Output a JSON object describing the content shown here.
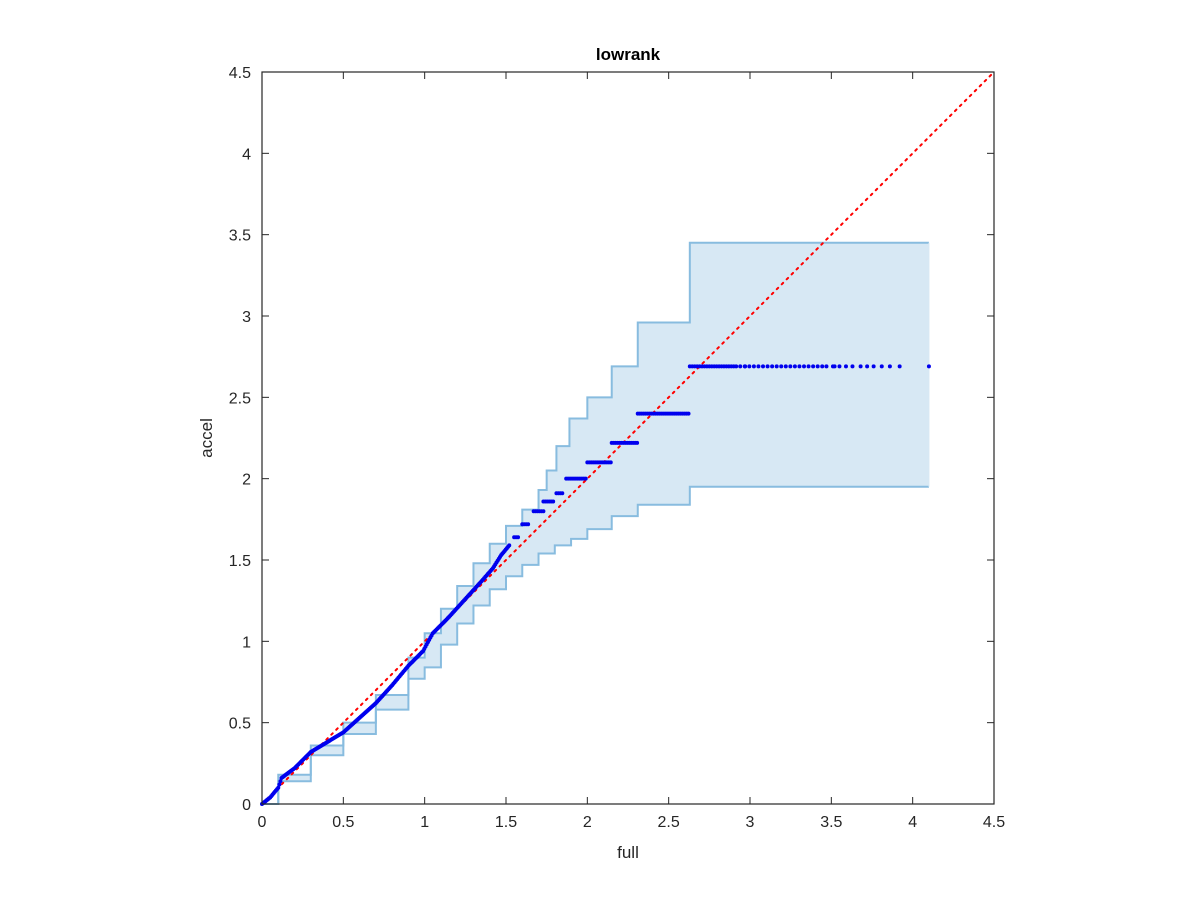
{
  "chart_data": {
    "type": "scatter",
    "title": "lowrank",
    "xlabel": "full",
    "ylabel": "accel",
    "xlim": [
      0,
      4.5
    ],
    "ylim": [
      0,
      4.5
    ],
    "xticks": [
      "0",
      "0.5",
      "1",
      "1.5",
      "2",
      "2.5",
      "3",
      "3.5",
      "4",
      "4.5"
    ],
    "yticks": [
      "0",
      "0.5",
      "1",
      "1.5",
      "2",
      "2.5",
      "3",
      "3.5",
      "4",
      "4.5"
    ],
    "grid": false,
    "colors": {
      "points": "#0000ee",
      "band_fill": "#d7e8f4",
      "band_edge": "#88bcdf",
      "reference": "#ff0000",
      "axes": "#262626"
    },
    "reference_line": {
      "style": "dotted",
      "x": [
        0,
        4.5
      ],
      "y": [
        0,
        4.5
      ]
    },
    "band_upper": [
      [
        0,
        0
      ],
      [
        0.1,
        0.18
      ],
      [
        0.3,
        0.36
      ],
      [
        0.5,
        0.5
      ],
      [
        0.7,
        0.67
      ],
      [
        0.9,
        0.9
      ],
      [
        1.0,
        1.05
      ],
      [
        1.1,
        1.2
      ],
      [
        1.2,
        1.34
      ],
      [
        1.3,
        1.48
      ],
      [
        1.4,
        1.6
      ],
      [
        1.5,
        1.71
      ],
      [
        1.6,
        1.81
      ],
      [
        1.7,
        1.93
      ],
      [
        1.75,
        2.05
      ],
      [
        1.81,
        2.2
      ],
      [
        1.89,
        2.37
      ],
      [
        2.0,
        2.5
      ],
      [
        2.15,
        2.69
      ],
      [
        2.31,
        2.96
      ],
      [
        2.63,
        3.45
      ],
      [
        4.1,
        3.45
      ]
    ],
    "band_lower": [
      [
        0,
        0
      ],
      [
        0.1,
        0.14
      ],
      [
        0.3,
        0.3
      ],
      [
        0.5,
        0.43
      ],
      [
        0.7,
        0.58
      ],
      [
        0.9,
        0.77
      ],
      [
        1.0,
        0.84
      ],
      [
        1.1,
        0.98
      ],
      [
        1.2,
        1.11
      ],
      [
        1.3,
        1.22
      ],
      [
        1.4,
        1.32
      ],
      [
        1.5,
        1.4
      ],
      [
        1.6,
        1.47
      ],
      [
        1.7,
        1.54
      ],
      [
        1.8,
        1.59
      ],
      [
        1.9,
        1.63
      ],
      [
        2.0,
        1.69
      ],
      [
        2.15,
        1.77
      ],
      [
        2.31,
        1.84
      ],
      [
        2.63,
        1.95
      ],
      [
        4.1,
        1.95
      ]
    ],
    "series": [
      {
        "curve": [
          [
            0,
            0
          ],
          [
            0.05,
            0.04
          ],
          [
            0.1,
            0.1
          ],
          [
            0.12,
            0.16
          ],
          [
            0.2,
            0.22
          ],
          [
            0.3,
            0.32
          ],
          [
            0.4,
            0.38
          ],
          [
            0.5,
            0.44
          ],
          [
            0.6,
            0.53
          ],
          [
            0.7,
            0.62
          ],
          [
            0.8,
            0.73
          ],
          [
            0.9,
            0.85
          ],
          [
            0.99,
            0.94
          ],
          [
            1.05,
            1.05
          ],
          [
            1.15,
            1.15
          ],
          [
            1.25,
            1.26
          ],
          [
            1.35,
            1.37
          ],
          [
            1.42,
            1.45
          ],
          [
            1.47,
            1.53
          ],
          [
            1.52,
            1.59
          ]
        ],
        "steps": [
          {
            "x": [
              1.55,
              1.58
            ],
            "y": 1.64,
            "spacing": 0.012
          },
          {
            "x": [
              1.6,
              1.64
            ],
            "y": 1.72,
            "spacing": 0.012
          },
          {
            "x": [
              1.67,
              1.73
            ],
            "y": 1.8,
            "spacing": 0.012
          },
          {
            "x": [
              1.73,
              1.79
            ],
            "y": 1.86,
            "spacing": 0.012
          },
          {
            "x": [
              1.81,
              1.85
            ],
            "y": 1.91,
            "spacing": 0.012
          },
          {
            "x": [
              1.87,
              1.99
            ],
            "y": 2.0,
            "spacing": 0.012
          },
          {
            "x": [
              2.0,
              2.15
            ],
            "y": 2.1,
            "spacing": 0.012
          },
          {
            "x": [
              2.15,
              2.31
            ],
            "y": 2.22,
            "spacing": 0.012
          },
          {
            "x": [
              2.31,
              2.63
            ],
            "y": 2.4,
            "spacing": 0.012
          },
          {
            "x": [
              2.63,
              2.92
            ],
            "y": 2.69,
            "spacing": 0.015
          },
          {
            "x": [
              2.94,
              3.45
            ],
            "y": 2.69,
            "spacing": 0.028
          },
          {
            "x": [
              3.47,
              3.65
            ],
            "y": 2.69,
            "spacing": 0.04
          }
        ],
        "extra": [
          [
            2.97,
            2.69
          ],
          [
            3.52,
            2.69
          ],
          [
            3.68,
            2.69
          ],
          [
            3.72,
            2.69
          ],
          [
            3.76,
            2.69
          ],
          [
            3.81,
            2.69
          ],
          [
            3.86,
            2.69
          ],
          [
            3.92,
            2.69
          ],
          [
            4.1,
            2.69
          ]
        ]
      }
    ]
  }
}
